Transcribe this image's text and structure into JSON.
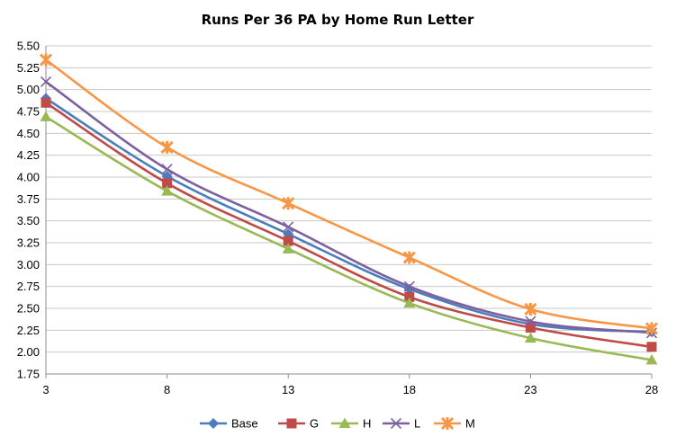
{
  "chart_data": {
    "type": "line",
    "title": "Runs Per 36 PA by Home Run Letter",
    "xlabel": "",
    "ylabel": "",
    "x": [
      3,
      8,
      13,
      18,
      23,
      28
    ],
    "xlim": [
      3,
      28
    ],
    "ylim": [
      1.75,
      5.5
    ],
    "ytick_step": 0.25,
    "grid": "horizontal",
    "legend_position": "bottom",
    "series": [
      {
        "name": "Base",
        "color": "#4a7ebb",
        "marker": "diamond",
        "values": [
          4.9,
          4.01,
          3.35,
          2.72,
          2.32,
          2.23
        ]
      },
      {
        "name": "G",
        "color": "#be4b48",
        "marker": "square",
        "values": [
          4.85,
          3.93,
          3.27,
          2.63,
          2.28,
          2.06
        ]
      },
      {
        "name": "H",
        "color": "#98b954",
        "marker": "triangle",
        "values": [
          4.69,
          3.84,
          3.18,
          2.56,
          2.16,
          1.91
        ]
      },
      {
        "name": "L",
        "color": "#7d60a0",
        "marker": "x",
        "values": [
          5.09,
          4.09,
          3.43,
          2.75,
          2.35,
          2.22
        ]
      },
      {
        "name": "M",
        "color": "#f79646",
        "marker": "star",
        "values": [
          5.34,
          4.34,
          3.7,
          3.08,
          2.49,
          2.27
        ]
      }
    ]
  }
}
